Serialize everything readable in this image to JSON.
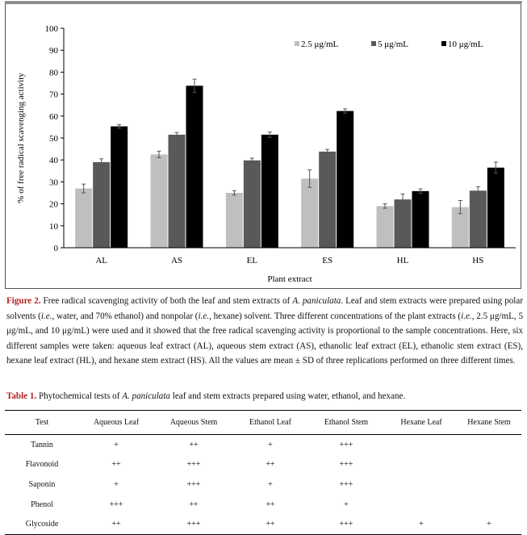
{
  "chart_data": {
    "type": "bar",
    "xlabel": "Plant extract",
    "ylabel": "% of free radical scavenging activity",
    "ylim": [
      0,
      100
    ],
    "yticks": [
      0,
      10,
      20,
      30,
      40,
      50,
      60,
      70,
      80,
      90,
      100
    ],
    "grid": false,
    "legend": "top-right",
    "categories": [
      "AL",
      "AS",
      "EL",
      "ES",
      "HL",
      "HS"
    ],
    "series": [
      {
        "name": "2.5 μg/mL",
        "color": "#bfbfbf",
        "values": [
          27,
          42.5,
          25,
          31.5,
          19,
          18.5
        ],
        "errors": [
          2,
          1.5,
          1,
          4,
          1,
          3
        ]
      },
      {
        "name": "5 μg/mL",
        "color": "#595959",
        "values": [
          39,
          51.5,
          39.8,
          43.8,
          22,
          26
        ],
        "errors": [
          1.5,
          1,
          1,
          1,
          2.5,
          1.8
        ]
      },
      {
        "name": "10 μg/mL",
        "color": "#000000",
        "values": [
          55.3,
          73.8,
          51.5,
          62.3,
          25.8,
          36.5
        ],
        "errors": [
          0.8,
          3,
          1.2,
          1,
          1,
          2.5
        ]
      }
    ]
  },
  "caption": {
    "label": "Figure 2.",
    "pre": " Free radical scavenging activity of both the leaf and stem extracts of ",
    "species": "A. paniculata",
    "mid1": ". Leaf and stem extracts were prepared using polar solvents (",
    "ie1": "i.e.",
    "mid2": ", water, and 70% ethanol) and nonpolar (",
    "ie2": "i.e.",
    "mid3": ", hexane) solvent. Three different concentrations of the plant extracts (",
    "ie3": "i.e.",
    "post": ", 2.5 μg/mL, 5 μg/mL, and 10 μg/mL) were used and it showed that the free radical scavenging activity is proportional to the sample concentrations. Here, six different samples were taken: aqueous leaf extract (AL), aqueous stem extract (AS), ethanolic leaf extract (EL), ethanolic stem extract (ES), hexane leaf extract (HL), and hexane stem extract (HS). All the values are mean ± SD of three replications performed on three different times."
  },
  "table": {
    "label": "Table 1.",
    "title_pre": " Phytochemical tests of ",
    "title_species": "A. paniculata",
    "title_post": " leaf and stem extracts prepared using water, ethanol, and hexane.",
    "headers": [
      "Test",
      "Aqueous Leaf",
      "Aqueous Stem",
      "Ethanol Leaf",
      "Ethanol Stem",
      "Hexane Leaf",
      "Hexane Stem"
    ],
    "rows": [
      [
        "Tannin",
        "+",
        "++",
        "+",
        "+++",
        "",
        ""
      ],
      [
        "Flavonoid",
        "++",
        "+++",
        "++",
        "+++",
        "",
        ""
      ],
      [
        "Saponin",
        "+",
        "+++",
        "+",
        "+++",
        "",
        ""
      ],
      [
        "Phenol",
        "+++",
        "++",
        "++",
        "+",
        "",
        ""
      ],
      [
        "Glycoside",
        "++",
        "+++",
        "++",
        "+++",
        "+",
        "+"
      ]
    ]
  }
}
